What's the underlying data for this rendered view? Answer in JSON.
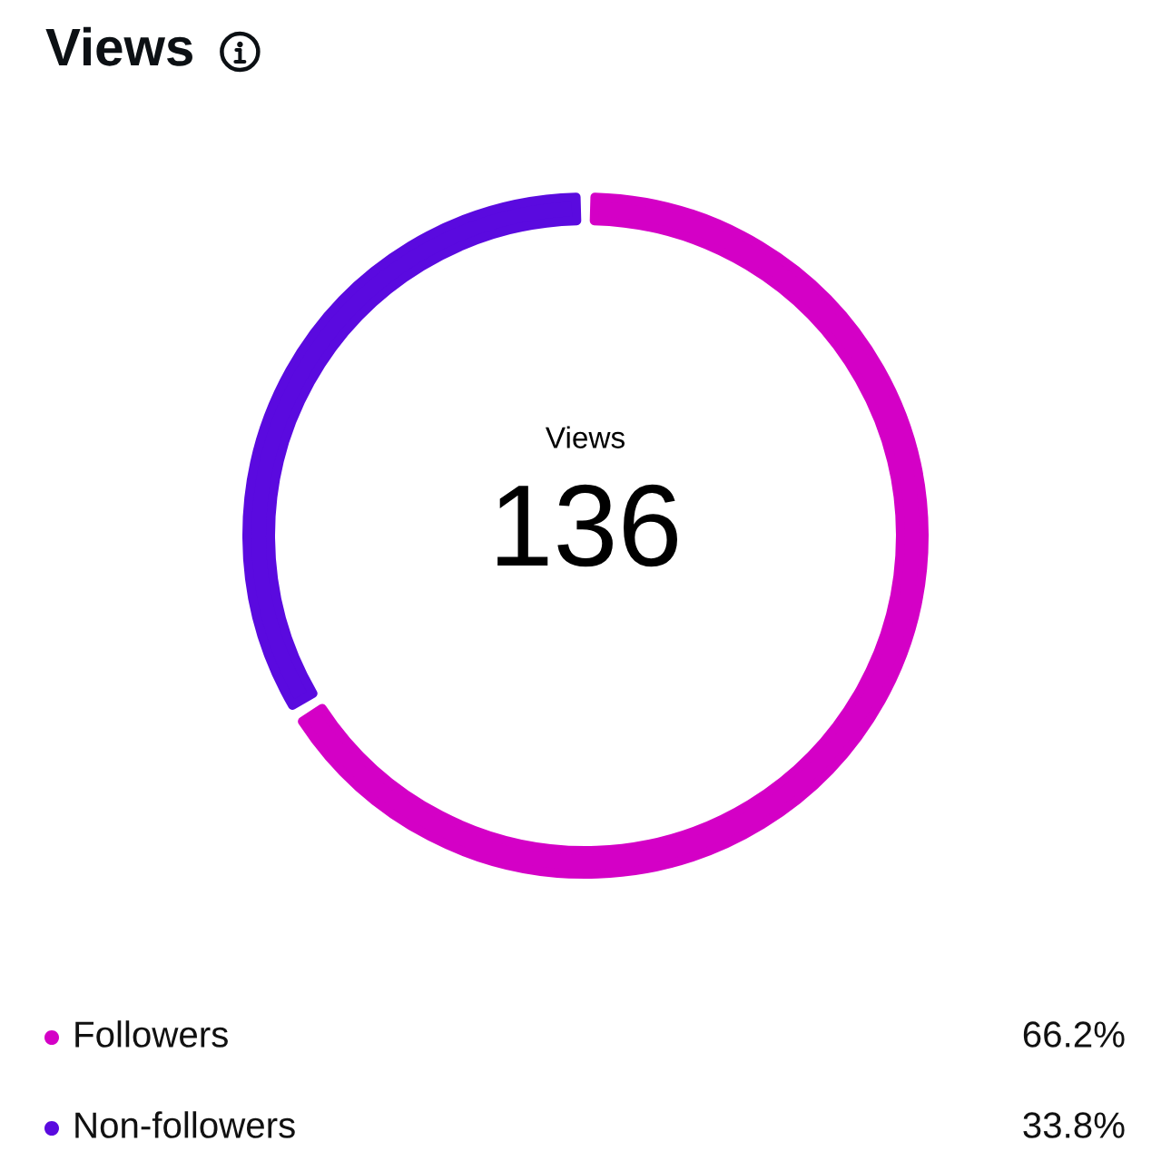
{
  "chart_data": {
    "type": "donut",
    "title": "Views",
    "categories": [
      "Followers",
      "Non-followers"
    ],
    "values": [
      66.2,
      33.8
    ],
    "colors": [
      "#d400c6",
      "#5a0adf"
    ],
    "value_labels": [
      "66.2%",
      "33.8%"
    ],
    "annotations": [
      "Views",
      "136"
    ],
    "legend": "bottom"
  }
}
